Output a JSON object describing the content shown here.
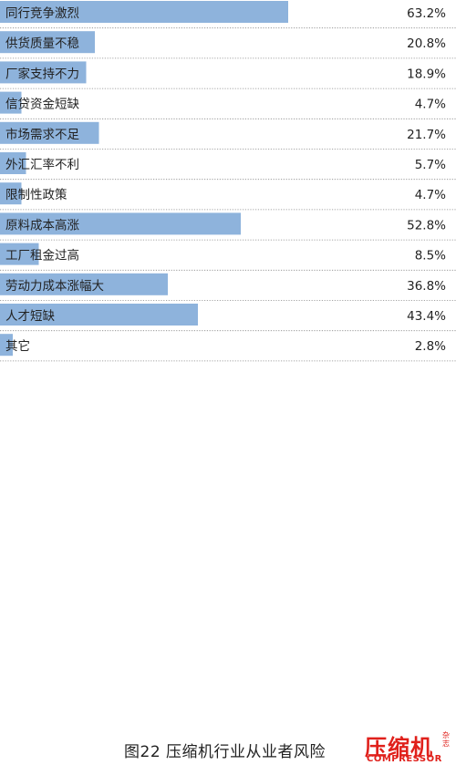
{
  "chart_data": {
    "type": "bar",
    "orientation": "horizontal",
    "categories": [
      "同行竞争激烈",
      "供货质量不稳",
      "厂家支持不力",
      "信贷资金短缺",
      "市场需求不足",
      "外汇汇率不利",
      "限制性政策",
      "原料成本高涨",
      "工厂租金过高",
      "劳动力成本涨幅大",
      "人才短缺",
      "其它"
    ],
    "values": [
      63.2,
      20.8,
      18.9,
      4.7,
      21.7,
      5.7,
      4.7,
      52.8,
      8.5,
      36.8,
      43.4,
      2.8
    ],
    "value_labels": [
      "63.2%",
      "20.8%",
      "18.9%",
      "4.7%",
      "21.7%",
      "5.7%",
      "4.7%",
      "52.8%",
      "8.5%",
      "36.8%",
      "43.4%",
      "2.8%"
    ],
    "title": "图22 压缩机行业从业者风险",
    "bar_color": "#8eb3dc",
    "separator_color": "#888888"
  },
  "logo": {
    "cn": "压缩机",
    "en": "COMPRESSOR",
    "side": "杂志",
    "color": "#e0201b"
  }
}
